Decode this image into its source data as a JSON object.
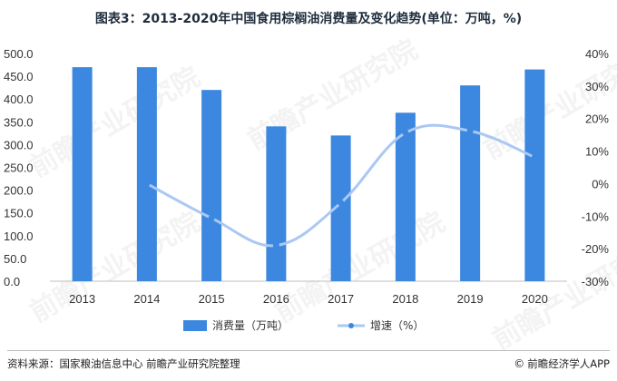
{
  "title": "图表3：2013-2020年中国食用棕榈油消费量及变化趋势(单位：万吨，%)",
  "source": "资料来源：国家粮油信息中心 前瞻产业研究院整理",
  "footer_brand": "前瞻经济学人APP",
  "watermark": "前瞻产业研究院",
  "colors": {
    "bar": "#3c87e0",
    "line": "#a9c8f3",
    "point": "#3c87e0",
    "axis_text": "#333333"
  },
  "chart_data": {
    "type": "bar",
    "categories": [
      "2013",
      "2014",
      "2015",
      "2016",
      "2017",
      "2018",
      "2019",
      "2020"
    ],
    "series": [
      {
        "name": "消费量（万吨）",
        "type": "bar",
        "axis": "left",
        "values": [
          470,
          470,
          420,
          340,
          320,
          370,
          430,
          465
        ]
      },
      {
        "name": "增速（%）",
        "type": "line",
        "axis": "right",
        "values": [
          null,
          0.0,
          -10.6,
          -19.0,
          -5.9,
          15.6,
          16.2,
          8.1
        ]
      }
    ],
    "y_left": {
      "ylim": [
        0,
        500
      ],
      "ticks": [
        "0.0",
        "50.0",
        "100.0",
        "150.0",
        "200.0",
        "250.0",
        "300.0",
        "350.0",
        "400.0",
        "450.0",
        "500.0"
      ]
    },
    "y_right": {
      "ylim": [
        -30,
        40
      ],
      "ticks": [
        "-30%",
        "-20%",
        "-10%",
        "0%",
        "10%",
        "20%",
        "30%",
        "40%"
      ]
    },
    "legend_position": "bottom"
  }
}
